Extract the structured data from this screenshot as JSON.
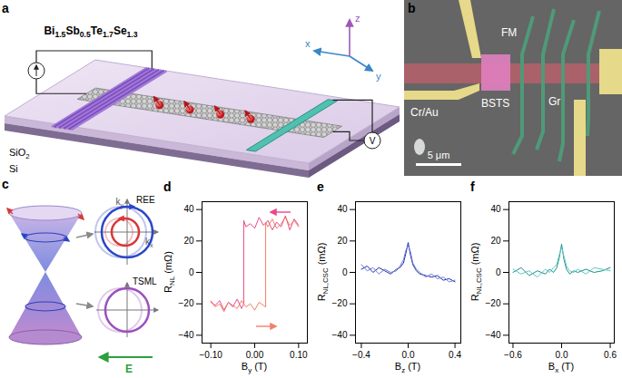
{
  "panel_labels": [
    "a",
    "b",
    "c",
    "d",
    "e",
    "f"
  ],
  "schematic": {
    "material": [
      "Bi",
      "1.5",
      "Sb",
      "0.5",
      "Te",
      "1.7",
      "Se",
      "1.3"
    ],
    "substrate": [
      "SiO",
      "2"
    ],
    "base": "Si",
    "axes": [
      "x",
      "y",
      "z"
    ],
    "meter": "V"
  },
  "micrograph": {
    "ferromagnet": "FM",
    "contacts": "Cr/Au",
    "flake": "BSTS",
    "graphene": "Gr",
    "scale_bar": "5 μm"
  },
  "bands": {
    "upper": "REE",
    "lower": "TSML",
    "ky": [
      "k",
      "y"
    ],
    "kx": [
      "k",
      "x"
    ],
    "field": "E"
  },
  "chart_data": [
    {
      "type": "line",
      "x_label": [
        "B",
        "y",
        " (T)"
      ],
      "y_label": [
        "R",
        "NL",
        " (mΩ)"
      ],
      "xlim": [
        -0.12,
        0.12
      ],
      "xticks": [
        -0.1,
        0,
        0.1
      ],
      "ylim": [
        -45,
        45
      ],
      "yticks": [
        -40,
        -20,
        0,
        20,
        40
      ],
      "series": [
        {
          "color": "#e8488a",
          "x": [
            0.1,
            0.09,
            0.08,
            0.07,
            0.06,
            0.05,
            0.04,
            0.03,
            0.02,
            0.01,
            0,
            -0.01,
            -0.02,
            -0.025,
            -0.025,
            -0.03,
            -0.04,
            -0.05,
            -0.06,
            -0.07,
            -0.08,
            -0.09,
            -0.1
          ],
          "values": [
            30,
            34,
            27,
            36,
            29,
            32,
            27,
            33,
            30,
            35,
            28,
            31,
            29,
            33,
            -20,
            -23,
            -17,
            -22,
            -19,
            -24,
            -18,
            -21,
            -19
          ]
        },
        {
          "color": "#f0806a",
          "x": [
            -0.1,
            -0.09,
            -0.08,
            -0.07,
            -0.06,
            -0.05,
            -0.04,
            -0.03,
            -0.02,
            -0.01,
            0,
            0.01,
            0.02,
            0.025,
            0.025,
            0.03,
            0.04,
            0.05,
            0.06,
            0.07,
            0.08,
            0.09,
            0.1
          ],
          "values": [
            -18,
            -22,
            -20,
            -25,
            -19,
            -21,
            -23,
            -18,
            -22,
            -20,
            -24,
            -19,
            -21,
            -22,
            32,
            29,
            34,
            28,
            31,
            35,
            30,
            33,
            29
          ]
        }
      ]
    },
    {
      "type": "line",
      "x_label": [
        "B",
        "z",
        " (T)"
      ],
      "y_label": [
        "R",
        "NL,CSC",
        " (mΩ)"
      ],
      "xlim": [
        -0.45,
        0.45
      ],
      "xticks": [
        -0.4,
        0,
        0.4
      ],
      "ylim": [
        -45,
        45
      ],
      "yticks": [
        -40,
        -20,
        0,
        20,
        40
      ],
      "x": [
        -0.4,
        -0.35,
        -0.3,
        -0.25,
        -0.2,
        -0.15,
        -0.1,
        -0.07,
        -0.04,
        -0.02,
        0,
        0.02,
        0.04,
        0.07,
        0.1,
        0.15,
        0.2,
        0.25,
        0.3,
        0.35,
        0.4
      ],
      "series": [
        {
          "color": "#1f2f9e",
          "values": [
            2,
            4,
            0,
            3,
            1,
            -1,
            2,
            3,
            6,
            12,
            19,
            11,
            5,
            1,
            -1,
            -2,
            -3,
            -2,
            -5,
            -4,
            -6
          ]
        },
        {
          "color": "#6a7de0",
          "values": [
            5,
            1,
            3,
            -1,
            2,
            0,
            1,
            4,
            8,
            14,
            17,
            13,
            6,
            2,
            0,
            -3,
            -1,
            -4,
            -3,
            -6,
            -5
          ]
        }
      ]
    },
    {
      "type": "line",
      "x_label": [
        "B",
        "x",
        " (T)"
      ],
      "y_label": [
        "R",
        "NL,CSC",
        " (mΩ)"
      ],
      "xlim": [
        -0.65,
        0.65
      ],
      "xticks": [
        -0.6,
        0,
        0.6
      ],
      "ylim": [
        -45,
        45
      ],
      "yticks": [
        -40,
        -20,
        0,
        20,
        40
      ],
      "x": [
        -0.6,
        -0.5,
        -0.4,
        -0.3,
        -0.2,
        -0.15,
        -0.1,
        -0.06,
        -0.03,
        0,
        0.03,
        0.06,
        0.1,
        0.15,
        0.2,
        0.3,
        0.4,
        0.5,
        0.6
      ],
      "series": [
        {
          "color": "#1a8f8f",
          "values": [
            0,
            3,
            -2,
            1,
            -1,
            2,
            0,
            3,
            9,
            18,
            8,
            2,
            -1,
            1,
            0,
            2,
            0,
            1,
            3
          ]
        },
        {
          "color": "#5cc6c0",
          "values": [
            2,
            -1,
            1,
            -3,
            2,
            0,
            3,
            5,
            11,
            16,
            10,
            4,
            1,
            0,
            2,
            -1,
            3,
            2,
            1
          ]
        }
      ]
    }
  ]
}
